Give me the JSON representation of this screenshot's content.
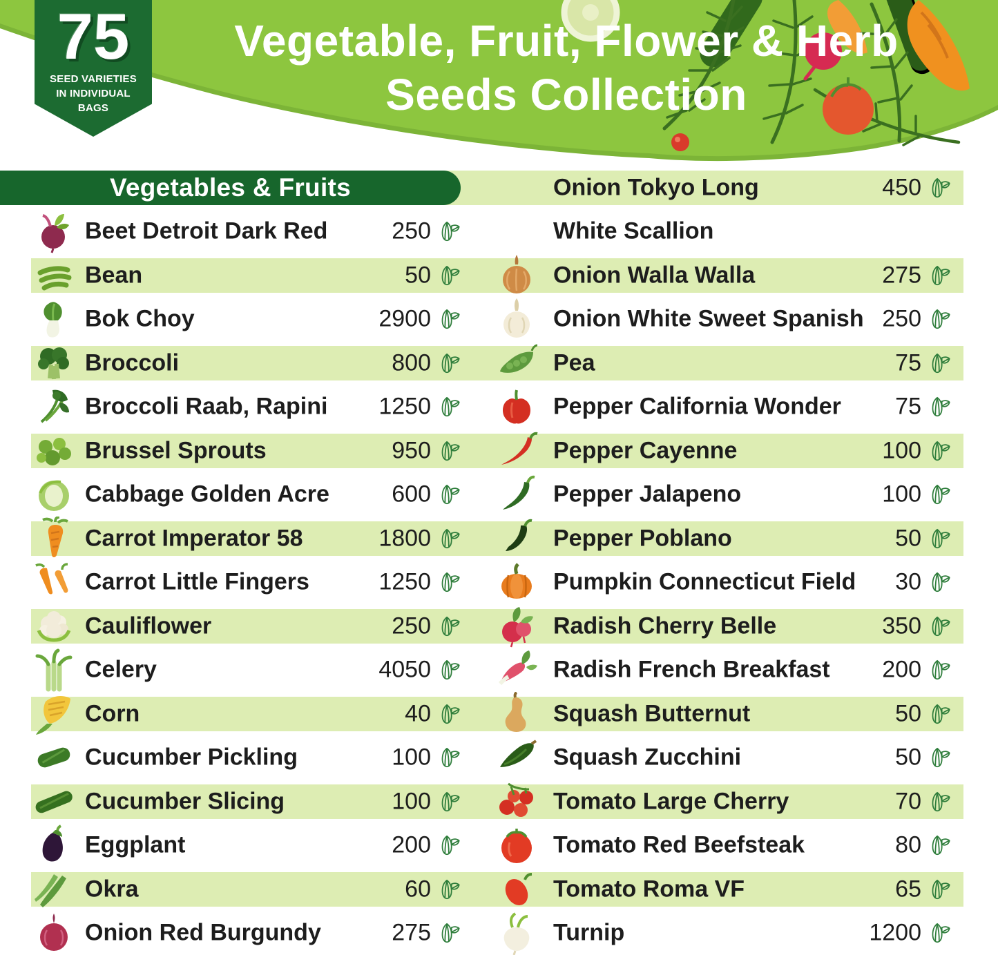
{
  "badge": {
    "number": "75",
    "caption_lines": [
      "SEED VARIETIES",
      "IN INDIVIDUAL",
      "BAGS"
    ]
  },
  "header": {
    "title_line1": "Vegetable, Fruit, Flower & Herb",
    "title_line2": "Seeds Collection"
  },
  "section": {
    "title": "Vegetables & Fruits"
  },
  "colors": {
    "header_green": "#8dc63f",
    "header_green_shade": "#7cb437",
    "dark_green_pill": "#17662c",
    "badge_green": "#1c6b31",
    "row_band_green": "#ddedb3",
    "seed_icon_green": "#2e7d3b",
    "text": "#1d1d1d"
  },
  "left_items": [
    {
      "icon": "beet",
      "name": "Beet Detroit Dark Red",
      "count": "250"
    },
    {
      "icon": "bean",
      "name": "Bean",
      "count": "50"
    },
    {
      "icon": "bokchoy",
      "name": "Bok Choy",
      "count": "2900"
    },
    {
      "icon": "broccoli",
      "name": "Broccoli",
      "count": "800"
    },
    {
      "icon": "rapini",
      "name": "Broccoli Raab, Rapini",
      "count": "1250"
    },
    {
      "icon": "brussels",
      "name": "Brussel Sprouts",
      "count": "950"
    },
    {
      "icon": "cabbage",
      "name": "Cabbage Golden Acre",
      "count": "600"
    },
    {
      "icon": "carrot",
      "name": "Carrot Imperator 58",
      "count": "1800"
    },
    {
      "icon": "carrots",
      "name": "Carrot Little Fingers",
      "count": "1250"
    },
    {
      "icon": "cauliflower",
      "name": "Cauliflower",
      "count": "250"
    },
    {
      "icon": "celery",
      "name": "Celery",
      "count": "4050"
    },
    {
      "icon": "corn",
      "name": "Corn",
      "count": "40"
    },
    {
      "icon": "cucumber_short",
      "name": "Cucumber Pickling",
      "count": "100"
    },
    {
      "icon": "cucumber_long",
      "name": "Cucumber Slicing",
      "count": "100"
    },
    {
      "icon": "eggplant",
      "name": "Eggplant",
      "count": "200"
    },
    {
      "icon": "okra",
      "name": "Okra",
      "count": "60"
    },
    {
      "icon": "onion_red",
      "name": "Onion Red Burgundy",
      "count": "275"
    }
  ],
  "right_items": [
    {
      "icon": "scallion",
      "name": "Onion Tokyo Long",
      "name2": "White Scallion",
      "count": "450"
    },
    {
      "icon": "onion_yellow",
      "name": "Onion Walla Walla",
      "count": "275"
    },
    {
      "icon": "onion_white",
      "name": "Onion White Sweet Spanish",
      "count": "250"
    },
    {
      "icon": "pea",
      "name": "Pea",
      "count": "75"
    },
    {
      "icon": "pepper_bell",
      "name": "Pepper California Wonder",
      "count": "75"
    },
    {
      "icon": "pepper_cayenne",
      "name": "Pepper Cayenne",
      "count": "100"
    },
    {
      "icon": "pepper_jalapeno",
      "name": "Pepper Jalapeno",
      "count": "100"
    },
    {
      "icon": "pepper_poblano",
      "name": "Pepper Poblano",
      "count": "50"
    },
    {
      "icon": "pumpkin",
      "name": "Pumpkin Connecticut Field",
      "count": "30"
    },
    {
      "icon": "radish_red",
      "name": "Radish Cherry Belle",
      "count": "350"
    },
    {
      "icon": "radish_french",
      "name": "Radish French Breakfast",
      "count": "200"
    },
    {
      "icon": "butternut",
      "name": "Squash Butternut",
      "count": "50"
    },
    {
      "icon": "zucchini",
      "name": "Squash Zucchini",
      "count": "50"
    },
    {
      "icon": "tomato_cherry",
      "name": "Tomato Large Cherry",
      "count": "70"
    },
    {
      "icon": "tomato_beefsteak",
      "name": "Tomato Red Beefsteak",
      "count": "80"
    },
    {
      "icon": "tomato_roma",
      "name": "Tomato Roma VF",
      "count": "65"
    },
    {
      "icon": "turnip",
      "name": "Turnip",
      "count": "1200"
    }
  ]
}
